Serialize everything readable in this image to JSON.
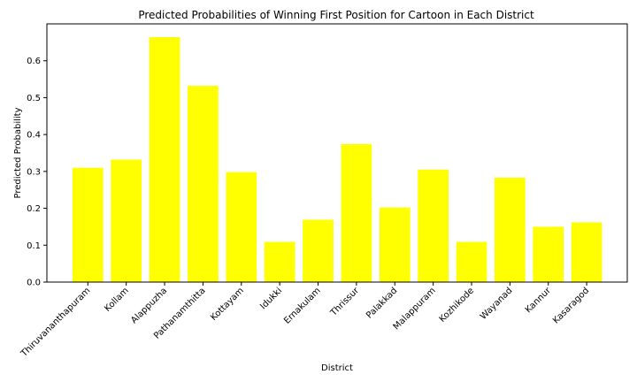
{
  "chart_data": {
    "type": "bar",
    "title": "Predicted Probabilities of Winning First Position for Cartoon in Each District",
    "xlabel": "District",
    "ylabel": "Predicted Probability",
    "categories": [
      "Thiruvananthapuram",
      "Kollam",
      "Alappuzha",
      "Pathanamthitta",
      "Kottayam",
      "Idukki",
      "Ernakulam",
      "Thrissur",
      "Palakkad",
      "Malappuram",
      "Kozhikode",
      "Wayanad",
      "Kannur",
      "Kasaragod"
    ],
    "values": [
      0.31,
      0.332,
      0.664,
      0.532,
      0.298,
      0.109,
      0.169,
      0.374,
      0.202,
      0.305,
      0.109,
      0.283,
      0.15,
      0.162
    ],
    "ylim": [
      0,
      0.7
    ],
    "yticks": [
      "0.0",
      "0.1",
      "0.2",
      "0.3",
      "0.4",
      "0.5",
      "0.6"
    ],
    "bar_color": "#ffff00",
    "grid": false
  }
}
